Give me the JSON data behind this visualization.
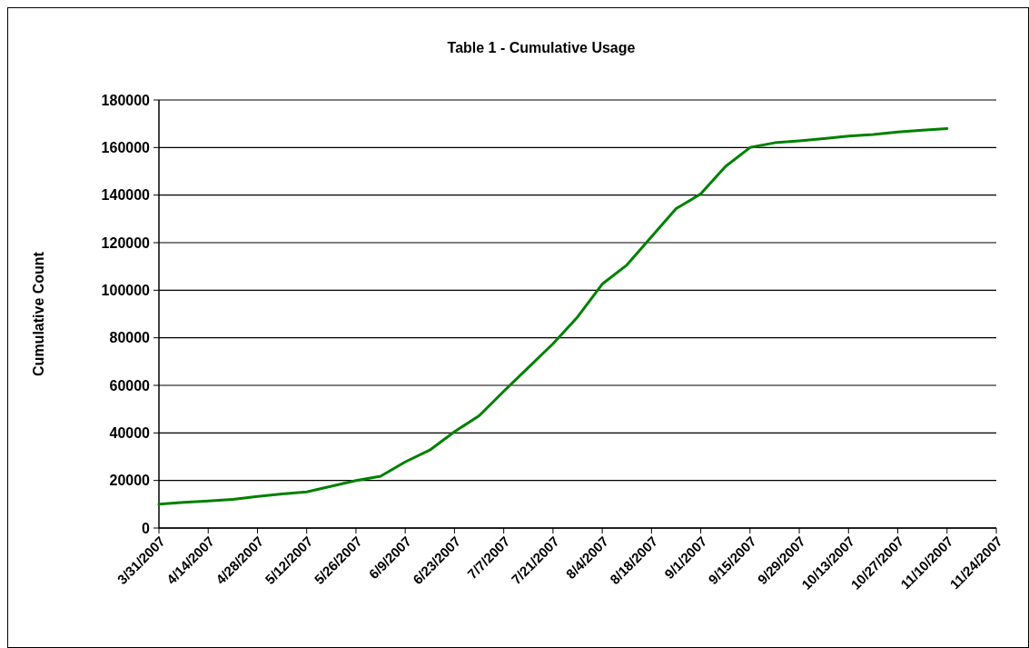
{
  "chart_data": {
    "type": "line",
    "title": "Table 1 - Cumulative Usage",
    "ylabel": "Cumulative Count",
    "x": [
      "2007-03-31",
      "2007-04-07",
      "2007-04-14",
      "2007-04-21",
      "2007-04-28",
      "2007-05-05",
      "2007-05-12",
      "2007-05-19",
      "2007-05-26",
      "2007-06-02",
      "2007-06-09",
      "2007-06-16",
      "2007-06-23",
      "2007-06-30",
      "2007-07-07",
      "2007-07-14",
      "2007-07-21",
      "2007-07-28",
      "2007-08-04",
      "2007-08-11",
      "2007-08-18",
      "2007-08-25",
      "2007-09-01",
      "2007-09-08",
      "2007-09-15",
      "2007-09-22",
      "2007-09-29",
      "2007-10-06",
      "2007-10-13",
      "2007-10-20",
      "2007-10-27",
      "2007-11-03",
      "2007-11-10"
    ],
    "series": [
      {
        "color": "#008000",
        "values": [
          10000,
          10800,
          11400,
          12000,
          13300,
          14300,
          15200,
          17600,
          20000,
          21800,
          27800,
          32800,
          40500,
          47200,
          57500,
          67500,
          77500,
          88800,
          102600,
          110600,
          122500,
          134300,
          140500,
          152000,
          160000,
          162000,
          162800,
          163800,
          164800,
          165500,
          166500,
          167300,
          168000
        ]
      }
    ],
    "xlim": [
      "2007-03-31",
      "2007-11-24"
    ],
    "xticks": [
      {
        "value": "2007-03-31",
        "label": "3/31/2007"
      },
      {
        "value": "2007-04-14",
        "label": "4/14/2007"
      },
      {
        "value": "2007-04-28",
        "label": "4/28/2007"
      },
      {
        "value": "2007-05-12",
        "label": "5/12/2007"
      },
      {
        "value": "2007-05-26",
        "label": "5/26/2007"
      },
      {
        "value": "2007-06-09",
        "label": "6/9/2007"
      },
      {
        "value": "2007-06-23",
        "label": "6/23/2007"
      },
      {
        "value": "2007-07-07",
        "label": "7/7/2007"
      },
      {
        "value": "2007-07-21",
        "label": "7/21/2007"
      },
      {
        "value": "2007-08-04",
        "label": "8/4/2007"
      },
      {
        "value": "2007-08-18",
        "label": "8/18/2007"
      },
      {
        "value": "2007-09-01",
        "label": "9/1/2007"
      },
      {
        "value": "2007-09-15",
        "label": "9/15/2007"
      },
      {
        "value": "2007-09-29",
        "label": "9/29/2007"
      },
      {
        "value": "2007-10-13",
        "label": "10/13/2007"
      },
      {
        "value": "2007-10-27",
        "label": "10/27/2007"
      },
      {
        "value": "2007-11-10",
        "label": "11/10/2007"
      },
      {
        "value": "2007-11-24",
        "label": "11/24/2007"
      }
    ],
    "ylim": [
      0,
      180000
    ],
    "yticks": [
      0,
      20000,
      40000,
      60000,
      80000,
      100000,
      120000,
      140000,
      160000,
      180000
    ],
    "grid": "y",
    "marker": "none",
    "line_style": "solid"
  }
}
